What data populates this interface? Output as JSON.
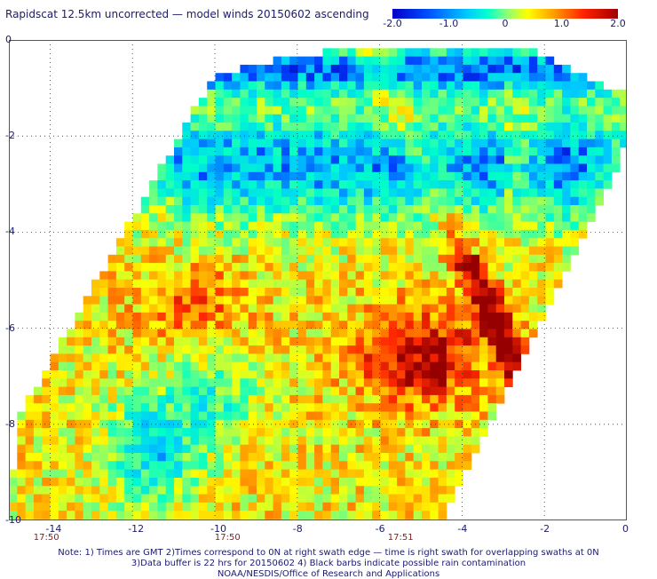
{
  "title": "Rapidscat 12.5km uncorrected — model winds 20150602 ascending",
  "colorbar": {
    "ticks": [
      "-2.0",
      "-1.0",
      "0",
      "1.0",
      "2.0"
    ],
    "tick_values": [
      -2.0,
      -1.0,
      0,
      1.0,
      2.0
    ],
    "range": [
      -2.0,
      2.0
    ]
  },
  "map": {
    "x_ticks": [
      "-14",
      "-12",
      "-10",
      "-8",
      "-6",
      "-4",
      "-2",
      "0"
    ],
    "x_tick_values": [
      -14,
      -12,
      -10,
      -8,
      -6,
      -4,
      -2,
      0
    ],
    "y_ticks": [
      "0",
      "-2",
      "-4",
      "-6",
      "-8",
      "-10"
    ],
    "y_tick_values": [
      0,
      -2,
      -4,
      -6,
      -8,
      -10
    ],
    "x_range": [
      -15,
      0
    ],
    "y_range": [
      -10,
      0
    ],
    "time_labels": [
      "17:50",
      "17:50",
      "17:51"
    ],
    "time_label_lons": [
      -14.1,
      -9.7,
      -5.5
    ],
    "swath_color_scale": "blue-cyan-green-yellow-orange-red-darkred",
    "grid": "dotted"
  },
  "notes": [
    "Note: 1) Times are GMT 2)Times correspond to 0N at right swath edge — time is right swath for overlapping swaths at 0N",
    "3)Data buffer is 22 hrs for 20150602 4) Black barbs indicate possible rain contamination",
    "NOAA/NESDIS/Office of Research and Applications"
  ]
}
